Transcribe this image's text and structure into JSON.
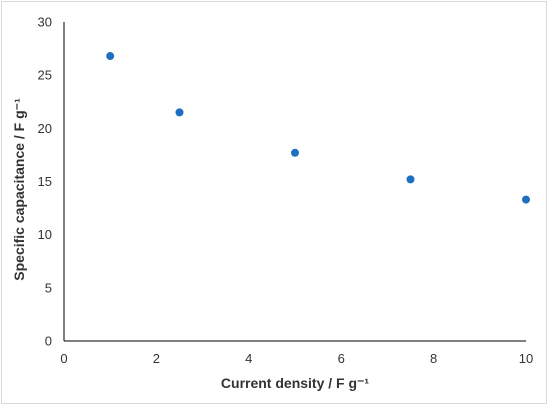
{
  "chart_data": {
    "type": "scatter",
    "xlabel": "Current density / F g⁻¹",
    "ylabel": "Specific capacitance / F g⁻¹",
    "xlim": [
      0,
      10
    ],
    "ylim": [
      0,
      30
    ],
    "x_ticks": [
      "0",
      "2",
      "4",
      "6",
      "8",
      "10"
    ],
    "y_ticks": [
      "0",
      "5",
      "10",
      "15",
      "20",
      "25",
      "30"
    ],
    "grid": false,
    "legend": "none",
    "series": [
      {
        "x": [
          1,
          2.5,
          5,
          7.5,
          10
        ],
        "y": [
          26.8,
          21.5,
          17.7,
          15.2,
          13.3
        ],
        "color": "#1f6fc0"
      }
    ]
  }
}
